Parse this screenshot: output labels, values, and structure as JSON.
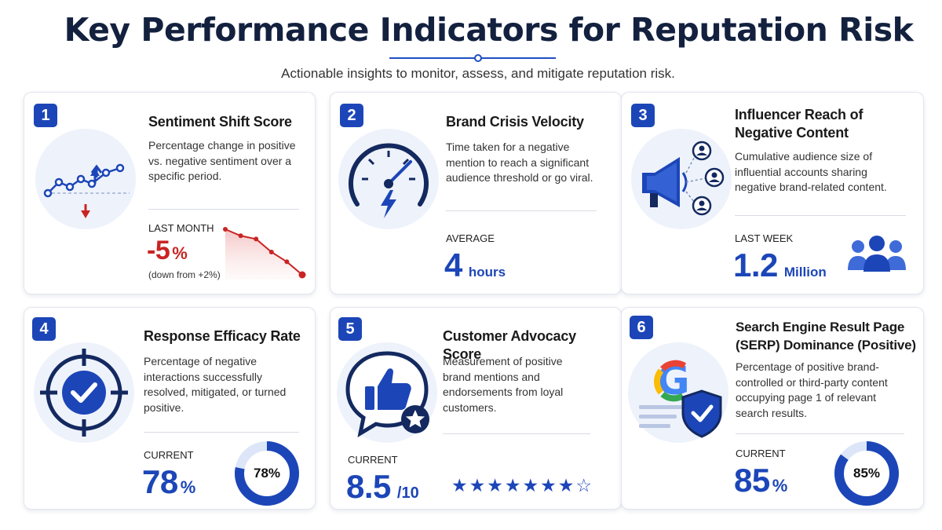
{
  "header": {
    "title": "Key Performance Indicators for Reputation Risk",
    "subtitle": "Actionable insights to monitor, assess, and mitigate reputation risk."
  },
  "colors": {
    "accent": "#1c46b8",
    "negative": "#c92424",
    "title": "#13213f"
  },
  "cards": [
    {
      "number": "1",
      "title": "Sentiment Shift Score",
      "description": "Percentage change in positive vs. negative sentiment over a specific period.",
      "icon": "trend-line-icon",
      "metric_label": "LAST MONTH",
      "metric_value": "-5",
      "metric_unit": "%",
      "note": "(down from +2%)"
    },
    {
      "number": "2",
      "title": "Brand Crisis Velocity",
      "description": "Time taken for a negative mention to reach a significant audience threshold or go viral.",
      "icon": "speedometer-icon",
      "metric_label": "AVERAGE",
      "metric_value": "4",
      "metric_unit": "hours"
    },
    {
      "number": "3",
      "title": "Influencer Reach of Negative Content",
      "description": "Cumulative audience size of influential accounts sharing negative brand-related content.",
      "icon": "megaphone-icon",
      "metric_label": "LAST WEEK",
      "metric_value": "1.2",
      "metric_unit": "Million"
    },
    {
      "number": "4",
      "title": "Response Efficacy Rate",
      "description": "Percentage of negative interactions successfully resolved, mitigated, or turned positive.",
      "icon": "target-check-icon",
      "metric_label": "CURRENT",
      "metric_value": "78",
      "metric_unit": "%",
      "donut_label": "78%",
      "donut_fraction": 0.78
    },
    {
      "number": "5",
      "title": "Customer Advocacy Score",
      "description": "Measurement of positive brand mentions and endorsements from loyal customers.",
      "icon": "thumbs-up-icon",
      "metric_label": "CURRENT",
      "metric_value": "8.5",
      "metric_unit": "/10",
      "stars": "★★★★★★★☆",
      "star_rating": 8.5
    },
    {
      "number": "6",
      "title": "Search Engine Result Page (SERP) Dominance (Positive)",
      "description": "Percentage of positive brand-controlled or third-party content occupying page 1 of relevant search results.",
      "icon": "search-shield-icon",
      "metric_label": "CURRENT",
      "metric_value": "85",
      "metric_unit": "%",
      "donut_label": "85%",
      "donut_fraction": 0.85
    }
  ],
  "trend_values": [
    2,
    1,
    0.5,
    -1.5,
    -3,
    -5
  ]
}
